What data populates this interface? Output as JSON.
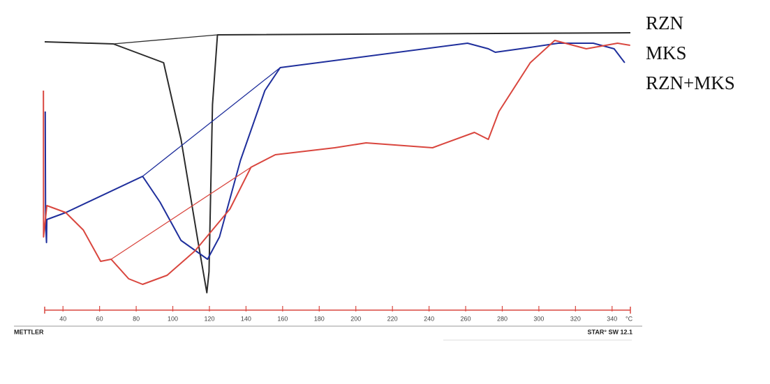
{
  "chart_data": {
    "type": "line",
    "x_unit": "°C",
    "xlim": [
      30,
      350
    ],
    "ylim": [
      0,
      100
    ],
    "xticks": [
      40,
      60,
      80,
      100,
      120,
      140,
      160,
      180,
      200,
      220,
      240,
      260,
      280,
      300,
      320,
      340
    ],
    "axis_color": "#d9463e",
    "footer_left": "METTLER",
    "footer_right": "STAR° SW 12.1",
    "series": [
      {
        "name": "RZN",
        "color": "#2b2b2b",
        "x": [
          30,
          67.5,
          95,
          104.5,
          114,
          118.6,
          119.8,
          121.7,
          124.4,
          350
        ],
        "values": [
          95,
          94.25,
          87.5,
          60,
          22.5,
          5,
          12.5,
          72.5,
          97.5,
          98.25
        ],
        "baseline": {
          "x": [
            67.5,
            124.4
          ],
          "values": [
            94.25,
            97.5
          ]
        }
      },
      {
        "name": "MKS",
        "color": "#1f2f9c",
        "x": [
          30.3,
          30.5,
          31,
          31.2,
          41.5,
          83.5,
          93,
          104.5,
          119,
          125.5,
          137,
          150.3,
          158.7,
          261,
          272.4,
          276.2,
          295.3,
          310.6,
          329.7,
          341.1,
          346.9
        ],
        "values": [
          70,
          30,
          23,
          31.25,
          33.75,
          46.75,
          37.5,
          23.75,
          17,
          25,
          52.5,
          77.5,
          85.75,
          94.5,
          92.5,
          91.25,
          93,
          94.5,
          94.5,
          92.5,
          87.5
        ],
        "baseline": {
          "x": [
            83.5,
            158.7
          ],
          "values": [
            46.75,
            85.75
          ]
        }
      },
      {
        "name": "RZN+MKS",
        "color": "#d9463e",
        "x": [
          29.3,
          29.4,
          31.2,
          41.5,
          51.1,
          60.6,
          66.3,
          75.9,
          83.5,
          96.9,
          112.1,
          131.2,
          142.7,
          156,
          188.5,
          205.6,
          241.9,
          264.8,
          272.4,
          278.2,
          295.3,
          308.7,
          325.9,
          343,
          349.9
        ],
        "values": [
          77.5,
          25,
          36.25,
          33.75,
          27.5,
          16.25,
          17,
          10,
          8,
          11.25,
          20,
          35,
          50,
          54.5,
          57,
          58.75,
          57,
          62.5,
          60,
          70,
          87.5,
          95.5,
          92.5,
          94.5,
          93.75
        ],
        "baseline": {
          "x": [
            66.3,
            142.7
          ],
          "values": [
            17,
            50
          ]
        }
      }
    ]
  }
}
